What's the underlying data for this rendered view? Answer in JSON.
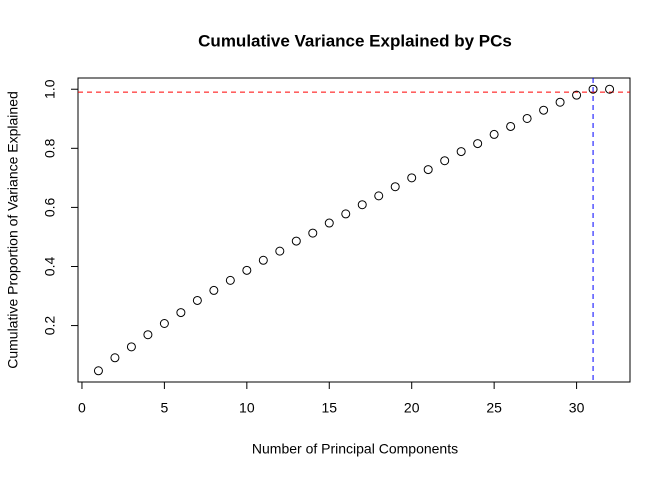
{
  "chart_data": {
    "type": "scatter",
    "title": "Cumulative Variance Explained by PCs",
    "x_label": "Number of Principal Components",
    "y_label": "Cumulative Proportion of Variance Explained",
    "x": [
      1,
      2,
      3,
      4,
      5,
      6,
      7,
      8,
      9,
      10,
      11,
      12,
      13,
      14,
      15,
      16,
      17,
      18,
      19,
      20,
      21,
      22,
      23,
      24,
      25,
      26,
      27,
      28,
      29,
      30,
      31,
      32
    ],
    "values": [
      0.047,
      0.091,
      0.128,
      0.169,
      0.207,
      0.244,
      0.285,
      0.319,
      0.353,
      0.387,
      0.421,
      0.452,
      0.486,
      0.513,
      0.547,
      0.578,
      0.609,
      0.639,
      0.67,
      0.7,
      0.728,
      0.758,
      0.789,
      0.816,
      0.847,
      0.874,
      0.901,
      0.929,
      0.956,
      0.98,
      1.0,
      1.0
    ],
    "color": "#000000",
    "xlim": [
      -0.24,
      33.24
    ],
    "ylim": [
      0.009,
      1.038
    ],
    "xticks": [
      0,
      5,
      10,
      15,
      20,
      25,
      30
    ],
    "yticks": [
      0.2,
      0.4,
      0.6,
      0.8,
      {
        "value": 1,
        "label": "1.0"
      }
    ],
    "hline": 0.99,
    "hline_color": "#ff0000",
    "vline": 31,
    "vline_color": "#0000ff"
  }
}
